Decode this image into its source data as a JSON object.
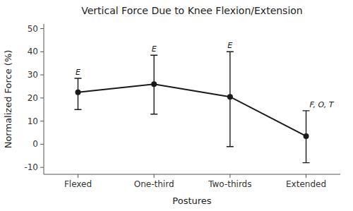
{
  "chart_data": {
    "type": "line",
    "title": "Vertical Force Due to Knee Flexion/Extension",
    "xlabel": "Postures",
    "ylabel": "Normalized Force (%)",
    "categories": [
      "Flexed",
      "One-third",
      "Two-thirds",
      "Extended"
    ],
    "values": [
      22.5,
      26.0,
      20.5,
      3.5
    ],
    "errors_upper": [
      6.0,
      12.5,
      19.5,
      11.0
    ],
    "errors_lower": [
      7.5,
      13.0,
      21.5,
      11.5
    ],
    "annotations": [
      "E",
      "E",
      "E",
      "F, O, T"
    ],
    "ylim": [
      -13,
      52
    ],
    "yticks": [
      -10,
      0,
      10,
      20,
      30,
      40,
      50
    ],
    "color": "#1a1a1a",
    "marker": "circle",
    "grid": false
  }
}
